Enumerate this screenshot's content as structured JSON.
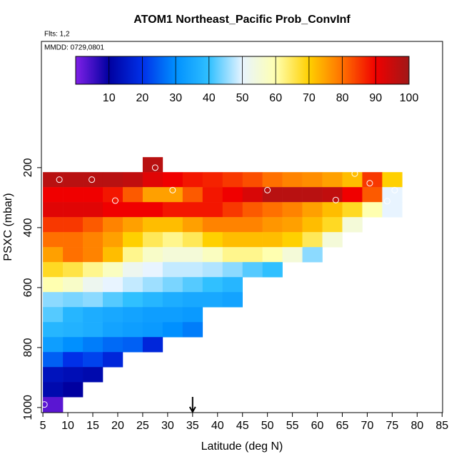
{
  "chart_data": {
    "type": "heatmap",
    "title": "ATOM1 Northeast_Pacific Prob_ConvInf",
    "flights": "Flts: 1,2",
    "dates": "MMDD: 0729,0801",
    "xlabel": "Latitude (deg N)",
    "ylabel": "PSXC (mbar)",
    "xlim": [
      4.7,
      85.1
    ],
    "ylim": [
      1017,
      -221
    ],
    "xticks": [
      5,
      10,
      15,
      20,
      25,
      30,
      35,
      40,
      45,
      50,
      55,
      60,
      65,
      70,
      75,
      80,
      85
    ],
    "yticks": [
      200,
      400,
      600,
      800,
      1000
    ],
    "x_bins": [
      5,
      9,
      13,
      17,
      21,
      25,
      29,
      33,
      37,
      41,
      45,
      49,
      53,
      57,
      61,
      65,
      69,
      73,
      77,
      81
    ],
    "y_bins": [
      165,
      215,
      265,
      315,
      365,
      415,
      465,
      515,
      565,
      615,
      665,
      715,
      765,
      815,
      865,
      915,
      965,
      1015
    ],
    "z": [
      [
        null,
        null,
        null,
        null,
        null,
        97,
        null,
        null,
        null,
        null,
        null,
        null,
        null,
        null,
        null,
        null,
        null,
        null,
        null
      ],
      [
        97,
        97,
        97,
        97,
        96,
        92,
        90,
        88,
        87,
        85,
        83,
        80,
        78,
        77,
        75,
        72,
        85,
        70,
        null
      ],
      [
        90,
        90,
        90,
        88,
        82,
        75,
        75,
        82,
        88,
        90,
        93,
        97,
        97,
        97,
        96,
        90,
        82,
        50,
        null
      ],
      [
        92,
        92,
        92,
        90,
        90,
        90,
        88,
        88,
        88,
        85,
        82,
        80,
        78,
        75,
        72,
        68,
        60,
        50,
        null
      ],
      [
        85,
        85,
        82,
        78,
        75,
        72,
        72,
        75,
        78,
        78,
        78,
        76,
        75,
        72,
        68,
        55,
        null,
        null,
        null
      ],
      [
        80,
        80,
        78,
        75,
        70,
        65,
        62,
        65,
        70,
        72,
        72,
        72,
        70,
        65,
        55,
        null,
        null,
        null,
        null
      ],
      [
        75,
        80,
        78,
        72,
        62,
        57,
        55,
        55,
        58,
        62,
        62,
        60,
        55,
        45,
        null,
        null,
        null,
        null,
        null
      ],
      [
        68,
        66,
        62,
        58,
        52,
        50,
        48,
        48,
        47,
        45,
        42,
        40,
        null,
        null,
        null,
        null,
        null,
        null,
        null
      ],
      [
        60,
        57,
        52,
        50,
        48,
        46,
        44,
        42,
        40,
        38,
        null,
        null,
        null,
        null,
        null,
        null,
        null,
        null,
        null
      ],
      [
        45,
        44,
        45,
        42,
        40,
        38,
        36,
        35,
        35,
        34,
        null,
        null,
        null,
        null,
        null,
        null,
        null,
        null,
        null
      ],
      [
        42,
        38,
        36,
        35,
        34,
        33,
        33,
        32,
        null,
        null,
        null,
        null,
        null,
        null,
        null,
        null,
        null,
        null,
        null
      ],
      [
        38,
        37,
        36,
        34,
        33,
        32,
        30,
        28,
        null,
        null,
        null,
        null,
        null,
        null,
        null,
        null,
        null,
        null,
        null
      ],
      [
        33,
        30,
        28,
        26,
        25,
        18,
        null,
        null,
        null,
        null,
        null,
        null,
        null,
        null,
        null,
        null,
        null,
        null,
        null
      ],
      [
        25,
        20,
        22,
        18,
        null,
        null,
        null,
        null,
        null,
        null,
        null,
        null,
        null,
        null,
        null,
        null,
        null,
        null,
        null
      ],
      [
        14,
        13,
        12,
        null,
        null,
        null,
        null,
        null,
        null,
        null,
        null,
        null,
        null,
        null,
        null,
        null,
        null,
        null,
        null
      ],
      [
        12,
        10,
        null,
        null,
        null,
        null,
        null,
        null,
        null,
        null,
        null,
        null,
        null,
        null,
        null,
        null,
        null,
        null,
        null
      ],
      [
        3,
        null,
        null,
        null,
        null,
        null,
        null,
        null,
        null,
        null,
        null,
        null,
        null,
        null,
        null,
        null,
        null,
        null,
        null
      ]
    ],
    "points": {
      "x": [
        8.3,
        14.8,
        19.5,
        27.5,
        31,
        50,
        63.7,
        67.5,
        70.5,
        74,
        75.5,
        5.3
      ],
      "y": [
        240,
        240,
        310,
        200,
        275,
        275,
        308,
        220,
        252,
        312,
        275,
        990
      ]
    },
    "arrow_x": 35,
    "colormap": [
      "#8020e8",
      "#0000a0",
      "#0030e8",
      "#0090ff",
      "#30c0ff",
      "#e8f4ff",
      "#ffffb0",
      "#ffd000",
      "#ff7000",
      "#f00000",
      "#a01818"
    ],
    "colorbar": {
      "clim": [
        0,
        100
      ],
      "ticks": [
        10,
        20,
        30,
        40,
        50,
        60,
        70,
        80,
        90,
        100
      ]
    }
  }
}
